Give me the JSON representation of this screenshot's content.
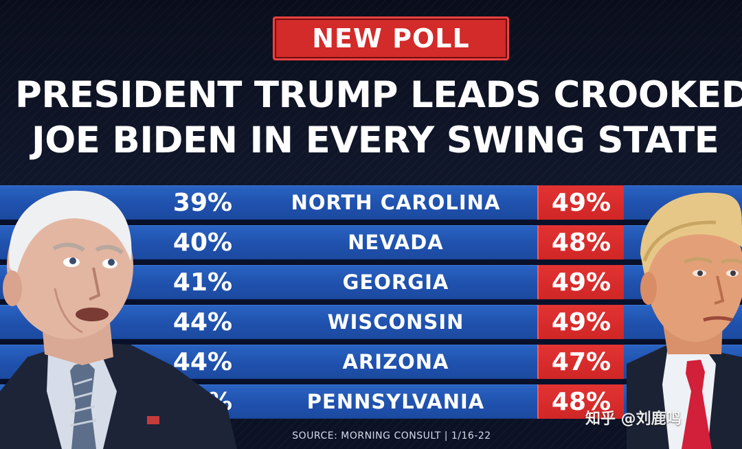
{
  "badge": "NEW POLL",
  "headline": {
    "line1": "PRESIDENT TRUMP LEADS CROOKED",
    "line2": "JOE BIDEN IN EVERY SWING STATE"
  },
  "source": "SOURCE: MORNING CONSULT | 1/16-22",
  "watermark": "知乎 @刘鹿鸣",
  "colors": {
    "background": "#0c1126",
    "row_blue": "#1f51ad",
    "trump_red": "#d32a2a",
    "text": "#ffffff"
  },
  "chart_data": {
    "type": "table",
    "categories": [
      "NORTH CAROLINA",
      "NEVADA",
      "GEORGIA",
      "WISCONSIN",
      "ARIZONA",
      "PENNSYLVANIA"
    ],
    "series": [
      {
        "values": [
          39,
          40,
          41,
          44,
          44,
          45
        ]
      },
      {
        "values": [
          49,
          48,
          49,
          49,
          47,
          48
        ]
      }
    ],
    "labels": {
      "left": [
        "39%",
        "40%",
        "41%",
        "44%",
        "44%",
        "45%"
      ],
      "right": [
        "49%",
        "48%",
        "49%",
        "49%",
        "47%",
        "48%"
      ]
    }
  }
}
